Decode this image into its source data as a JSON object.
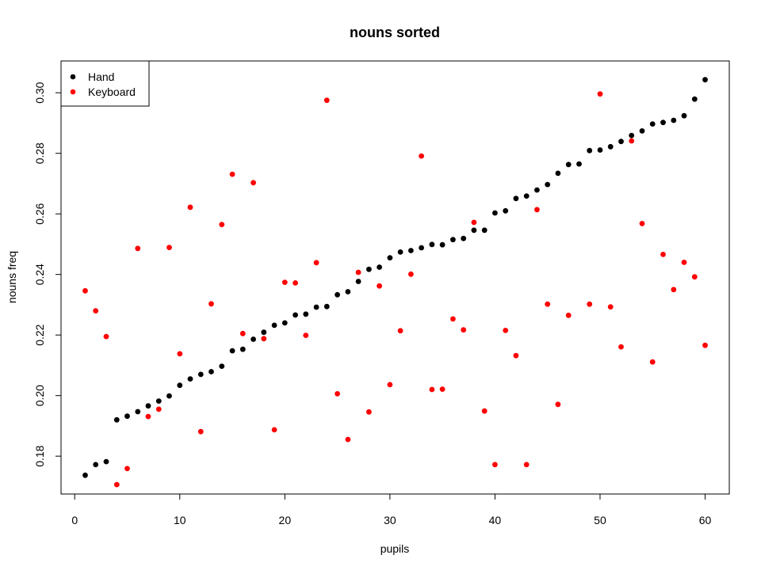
{
  "chart_data": {
    "type": "scatter",
    "title": "nouns sorted",
    "xlabel": "pupils",
    "ylabel": "nouns freq",
    "xlim": [
      -1.3,
      62.3
    ],
    "ylim": [
      0.1675,
      0.3105
    ],
    "x_ticks": [
      0,
      10,
      20,
      30,
      40,
      50,
      60
    ],
    "y_ticks": [
      0.18,
      0.2,
      0.22,
      0.24,
      0.26,
      0.28,
      0.3
    ],
    "y_tick_labels": [
      "0.18",
      "0.20",
      "0.22",
      "0.24",
      "0.26",
      "0.28",
      "0.30"
    ],
    "grid": false,
    "legend_position": "top-left",
    "series": [
      {
        "name": "Hand",
        "color": "#000000",
        "x": [
          1,
          2,
          3,
          4,
          5,
          6,
          7,
          8,
          9,
          10,
          11,
          12,
          13,
          14,
          15,
          16,
          17,
          18,
          19,
          20,
          21,
          22,
          23,
          24,
          25,
          26,
          27,
          28,
          29,
          30,
          31,
          32,
          33,
          34,
          35,
          36,
          37,
          38,
          39,
          40,
          41,
          42,
          43,
          44,
          45,
          46,
          47,
          48,
          49,
          50,
          51,
          52,
          53,
          54,
          55,
          56,
          57,
          58,
          59,
          60
        ],
        "y": [
          0.1737,
          0.1772,
          0.1782,
          0.192,
          0.1932,
          0.1947,
          0.1966,
          0.1982,
          0.1999,
          0.2034,
          0.2055,
          0.207,
          0.2079,
          0.2097,
          0.2148,
          0.2153,
          0.2186,
          0.2209,
          0.2232,
          0.224,
          0.2266,
          0.2269,
          0.2292,
          0.2294,
          0.2333,
          0.2343,
          0.2377,
          0.2417,
          0.2424,
          0.2455,
          0.2474,
          0.2479,
          0.2488,
          0.2499,
          0.2498,
          0.2515,
          0.2519,
          0.2546,
          0.2546,
          0.2603,
          0.261,
          0.2651,
          0.2659,
          0.2679,
          0.2697,
          0.2734,
          0.2763,
          0.2765,
          0.2809,
          0.2811,
          0.2822,
          0.2839,
          0.2859,
          0.2874,
          0.2897,
          0.2902,
          0.2909,
          0.2924,
          0.2979,
          0.3043
        ]
      },
      {
        "name": "Keyboard",
        "color": "#ff0000",
        "x": [
          1,
          2,
          3,
          4,
          5,
          6,
          7,
          8,
          9,
          10,
          11,
          12,
          13,
          14,
          15,
          16,
          17,
          18,
          19,
          20,
          21,
          22,
          23,
          24,
          25,
          26,
          27,
          28,
          29,
          30,
          31,
          32,
          33,
          34,
          35,
          36,
          37,
          38,
          39,
          40,
          41,
          42,
          43,
          44,
          45,
          46,
          47,
          48,
          49,
          50,
          51,
          52,
          53,
          54,
          55,
          56,
          57,
          58,
          59,
          60
        ],
        "y": [
          0.2346,
          0.228,
          0.2195,
          0.1706,
          0.1759,
          0.2486,
          0.1931,
          0.1955,
          0.2489,
          0.2138,
          0.2622,
          0.1881,
          0.2303,
          0.2565,
          0.2731,
          0.2205,
          0.2703,
          0.2188,
          0.1887,
          0.2374,
          0.2372,
          0.2199,
          0.2439,
          0.2975,
          0.2006,
          0.1855,
          0.2407,
          0.1946,
          0.2362,
          0.2036,
          0.2214,
          0.2401,
          0.2791,
          0.202,
          0.2021,
          0.2253,
          0.2217,
          0.2572,
          0.1949,
          0.1772,
          0.2215,
          0.2132,
          0.1772,
          0.2614,
          0.2302,
          0.1971,
          0.2265,
          null,
          0.2302,
          0.2996,
          0.2293,
          0.2161,
          0.2841,
          0.2568,
          0.2111,
          0.2466,
          0.235,
          0.244,
          0.2392,
          0.2166
        ]
      }
    ]
  }
}
